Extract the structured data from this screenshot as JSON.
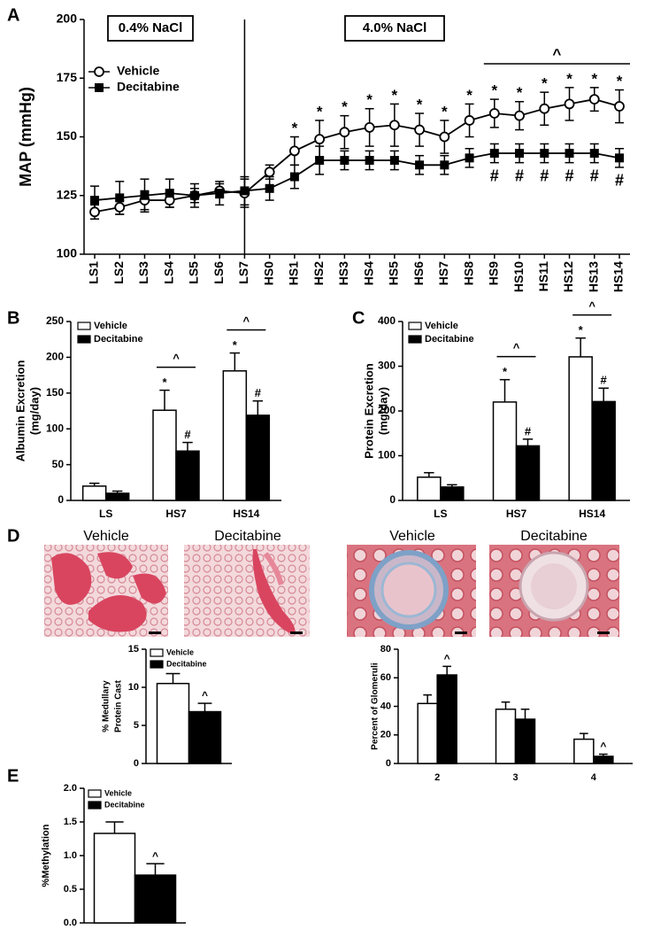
{
  "images": {
    "panel": "D",
    "labels": [
      "Vehicle",
      "Decitabine",
      "Vehicle",
      "Decitabine"
    ]
  },
  "chart_data": [
    {
      "type": "line",
      "panel": "A",
      "y_label": "MAP (mmHg)",
      "phase_labels": [
        "0.4% NaCl",
        "4.0% NaCl"
      ],
      "divider_index": 6,
      "categories": [
        "LS1",
        "LS2",
        "LS3",
        "LS4",
        "LS5",
        "LS6",
        "LS7",
        "HS0",
        "HS1",
        "HS2",
        "HS3",
        "HS4",
        "HS5",
        "HS6",
        "HS7",
        "HS8",
        "HS9",
        "HS10",
        "HS11",
        "HS12",
        "HS13",
        "HS14"
      ],
      "ylim": [
        100,
        200
      ],
      "yticks": [
        100,
        125,
        150,
        175,
        200
      ],
      "legend": "upper-left",
      "series": [
        {
          "name": "Vehicle",
          "marker": "open-circle",
          "color": "#000000",
          "values": [
            118,
            120,
            123,
            123,
            125,
            127,
            126,
            135,
            144,
            149,
            152,
            154,
            155,
            153,
            150,
            157,
            160,
            159,
            162,
            164,
            166,
            163
          ],
          "errors": [
            3,
            3,
            4,
            3,
            3,
            3,
            6,
            3,
            6,
            8,
            7,
            8,
            9,
            7,
            7,
            7,
            6,
            6,
            7,
            7,
            5,
            7
          ],
          "marks": [
            null,
            null,
            null,
            null,
            null,
            null,
            null,
            null,
            "*",
            "*",
            "*",
            "*",
            "*",
            "*",
            "*",
            "*",
            "*",
            "*",
            "*",
            "*",
            "*",
            "*"
          ]
        },
        {
          "name": "Decitabine",
          "marker": "filled-square",
          "color": "#000000",
          "values": [
            123,
            124,
            125,
            126,
            125,
            126,
            127,
            128,
            133,
            140,
            140,
            140,
            140,
            138,
            138,
            141,
            143,
            143,
            143,
            143,
            143,
            141
          ],
          "errors": [
            6,
            7,
            7,
            6,
            5,
            5,
            6,
            5,
            5,
            6,
            4,
            4,
            4,
            4,
            4,
            4,
            4,
            4,
            4,
            4,
            4,
            4
          ],
          "marks": [
            null,
            null,
            null,
            null,
            null,
            null,
            null,
            null,
            null,
            null,
            null,
            null,
            null,
            null,
            null,
            null,
            "#",
            "#",
            "#",
            "#",
            "#",
            "#"
          ]
        }
      ],
      "brackets": [
        {
          "label": "^",
          "from": 16,
          "to": 21
        }
      ]
    },
    {
      "type": "bar",
      "panel": "B",
      "y_label": [
        "Albumin Excretion",
        "(mg/day)"
      ],
      "categories": [
        "LS",
        "HS7",
        "HS14"
      ],
      "ylim": [
        0,
        250
      ],
      "yticks": [
        0,
        50,
        100,
        150,
        200,
        250
      ],
      "legend": "upper-left",
      "series": [
        {
          "name": "Vehicle",
          "color": "#ffffff",
          "values": [
            20,
            126,
            181
          ],
          "errors": [
            4,
            28,
            25
          ],
          "marks": [
            null,
            "*",
            "*"
          ]
        },
        {
          "name": "Decitabine",
          "color": "#000000",
          "values": [
            10,
            69,
            119
          ],
          "errors": [
            3,
            12,
            20
          ],
          "marks": [
            null,
            "#",
            "#"
          ]
        }
      ],
      "brackets": [
        {
          "label": "^",
          "from": 1,
          "to": 1
        },
        {
          "label": "^",
          "from": 2,
          "to": 2
        }
      ]
    },
    {
      "type": "bar",
      "panel": "C",
      "y_label": [
        "Protein  Excretion",
        "(mg/day)"
      ],
      "categories": [
        "LS",
        "HS7",
        "HS14"
      ],
      "ylim": [
        0,
        400
      ],
      "yticks": [
        0,
        100,
        200,
        300,
        400
      ],
      "legend": "upper-left",
      "series": [
        {
          "name": "Vehicle",
          "color": "#ffffff",
          "values": [
            52,
            220,
            321
          ],
          "errors": [
            10,
            50,
            42
          ],
          "marks": [
            null,
            "*",
            "*"
          ]
        },
        {
          "name": "Decitabine",
          "color": "#000000",
          "values": [
            30,
            122,
            221
          ],
          "errors": [
            5,
            15,
            30
          ],
          "marks": [
            null,
            "#",
            "#"
          ]
        }
      ],
      "brackets": [
        {
          "label": "^",
          "from": 1,
          "to": 1
        },
        {
          "label": "^",
          "from": 2,
          "to": 2
        }
      ]
    },
    {
      "type": "bar",
      "y_label": [
        "% Medullary",
        "Protein Cast"
      ],
      "categories": [
        null
      ],
      "ylim": [
        0,
        15
      ],
      "yticks": [
        0,
        5,
        10,
        15
      ],
      "legend": "upper-left",
      "series": [
        {
          "name": "Vehicle",
          "color": "#ffffff",
          "values": [
            10.5
          ],
          "errors": [
            1.3
          ],
          "marks": [
            null
          ]
        },
        {
          "name": "Decitabine",
          "color": "#000000",
          "values": [
            6.8
          ],
          "errors": [
            1.1
          ],
          "marks": [
            "^"
          ]
        }
      ]
    },
    {
      "type": "bar",
      "y_label": [
        "Percent of Glomeruli"
      ],
      "categories": [
        "2",
        "3",
        "4"
      ],
      "ylim": [
        0,
        80
      ],
      "yticks": [
        0,
        20,
        40,
        60,
        80
      ],
      "series": [
        {
          "name": "Vehicle",
          "color": "#ffffff",
          "values": [
            42,
            38,
            17
          ],
          "errors": [
            6,
            5,
            4
          ],
          "marks": [
            null,
            null,
            null
          ]
        },
        {
          "name": "Decitabine",
          "color": "#000000",
          "values": [
            62,
            31,
            5
          ],
          "errors": [
            6,
            7,
            1.5
          ],
          "marks": [
            "^",
            null,
            "^"
          ]
        }
      ]
    },
    {
      "type": "bar",
      "panel": "E",
      "y_label": [
        "%Methylation"
      ],
      "categories": [
        null
      ],
      "ylim": [
        0,
        2
      ],
      "yticks": [
        {
          "value": 0,
          "label": "0.0"
        },
        0.5,
        {
          "value": 1,
          "label": "1.0"
        },
        1.5,
        {
          "value": 2,
          "label": "2.0"
        }
      ],
      "legend": "upper-left",
      "series": [
        {
          "name": "Vehicle",
          "color": "#ffffff",
          "values": [
            1.33
          ],
          "errors": [
            0.17
          ],
          "marks": [
            null
          ]
        },
        {
          "name": "Decitabine",
          "color": "#000000",
          "values": [
            0.71
          ],
          "errors": [
            0.17
          ],
          "marks": [
            "^"
          ]
        }
      ]
    }
  ]
}
